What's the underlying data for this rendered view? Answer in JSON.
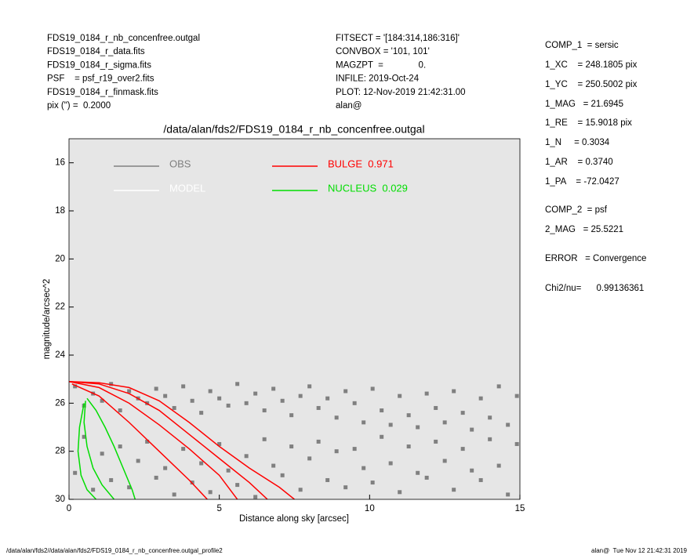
{
  "header": {
    "left": [
      "FDS19_0184_r_nb_concenfree.outgal",
      "FDS19_0184_r_data.fits",
      "FDS19_0184_r_sigma.fits",
      "PSF    = psf_r19_over2.fits",
      "FDS19_0184_r_finmask.fits",
      "pix (\") =  0.2000"
    ],
    "middle": [
      "FITSECT = '[184:314,186:316]'",
      "CONVBOX = '101, 101'",
      "MAGZPT  =              0.",
      "INFILE: 2019-Oct-24",
      "PLOT: 12-Nov-2019 21:42:31.00",
      "alan@"
    ],
    "right": [
      "COMP_1  = sersic",
      "1_XC    = 248.1805 pix",
      "1_YC    = 250.5002 pix",
      "1_MAG   = 21.6945",
      "1_RE    = 15.9018 pix",
      "1_N     = 0.3034",
      "1_AR    = 0.3740",
      "1_PA    = -72.0427",
      "COMP_2  = psf",
      "2_MAG   = 25.5221",
      "ERROR   = Convergence",
      "Chi2/nu=      0.99136361"
    ]
  },
  "footer": {
    "left": "/data/alan/fds2//data/alan/fds2/FDS19_0184_r_nb_concenfree.outgal_profile2",
    "right": "alan@  Tue Nov 12 21:42:31 2019"
  },
  "chart_data": {
    "type": "profile",
    "title": "/data/alan/fds2/FDS19_0184_r_nb_concenfree.outgal",
    "x_label": "Distance along sky [arcsec]",
    "y_label": "magnitude/arcsec^2",
    "xlim": [
      0,
      15
    ],
    "ylim": [
      30,
      15
    ],
    "xticks": [
      0,
      5,
      10,
      15
    ],
    "yticks": [
      16,
      18,
      20,
      22,
      24,
      26,
      28,
      30
    ],
    "background": "#e6e6e6",
    "series": [
      {
        "name": "OBS",
        "color": "#808080",
        "x": [
          0.2,
          0.5,
          0.8,
          1.1,
          1.4,
          1.7,
          2.0,
          2.3,
          2.6,
          2.9,
          3.2,
          3.5,
          3.8,
          4.1,
          4.4,
          4.7,
          5.0,
          5.3,
          5.6,
          5.9,
          6.2,
          6.5,
          6.8,
          7.1,
          7.4,
          7.7,
          8.0,
          8.3,
          8.6,
          8.9,
          9.2,
          9.5,
          9.8,
          10.1,
          10.4,
          10.7,
          11.0,
          11.3,
          11.6,
          11.9,
          12.2,
          12.5,
          12.8,
          13.1,
          13.4,
          13.7,
          14.0,
          14.3,
          14.6,
          14.9,
          0.2,
          0.5,
          0.8,
          1.1,
          1.4,
          1.7,
          2.0,
          2.3,
          2.6,
          2.9,
          3.2,
          3.5,
          3.8,
          4.1,
          4.4,
          4.7,
          5.0,
          5.3,
          5.6,
          5.9,
          6.2,
          6.5,
          6.8,
          7.1,
          7.4,
          7.7,
          8.0,
          8.3,
          8.6,
          8.9,
          9.2,
          9.5,
          9.8,
          10.1,
          10.4,
          10.7,
          11.0,
          11.3,
          11.6,
          11.9,
          12.2,
          12.5,
          12.8,
          13.1,
          13.4,
          13.7,
          14.0,
          14.3,
          14.6,
          14.9
        ],
        "values": [
          25.3,
          26.1,
          25.6,
          25.9,
          25.2,
          26.3,
          25.5,
          25.8,
          26.0,
          25.4,
          25.7,
          26.2,
          25.3,
          25.9,
          26.4,
          25.5,
          25.8,
          26.1,
          25.2,
          26.0,
          25.6,
          26.3,
          25.4,
          25.9,
          26.5,
          25.7,
          25.3,
          26.2,
          25.8,
          26.6,
          25.5,
          26.0,
          26.8,
          25.4,
          26.3,
          26.9,
          25.7,
          26.5,
          27.0,
          25.6,
          26.2,
          26.8,
          25.5,
          26.4,
          27.1,
          25.8,
          26.6,
          25.3,
          26.9,
          25.7,
          28.9,
          27.4,
          29.6,
          28.1,
          29.2,
          27.8,
          29.5,
          28.4,
          27.6,
          29.1,
          28.7,
          29.8,
          27.9,
          29.3,
          28.5,
          29.7,
          27.7,
          28.8,
          29.4,
          28.2,
          29.9,
          27.5,
          28.6,
          29.0,
          27.8,
          29.6,
          28.3,
          27.6,
          29.2,
          28.0,
          29.5,
          27.9,
          28.7,
          29.3,
          27.4,
          28.5,
          29.7,
          27.8,
          28.9,
          29.1,
          27.6,
          28.4,
          29.6,
          27.9,
          28.8,
          29.2,
          27.5,
          28.6,
          29.8,
          27.7
        ]
      },
      {
        "name": "MODEL",
        "color": "#ffffff"
      },
      {
        "name": "BULGE  0.971",
        "color": "#ff0000",
        "curves": [
          {
            "x": [
              0,
              1,
              2,
              3,
              4,
              5,
              6,
              7,
              7.5
            ],
            "values": [
              25.1,
              25.15,
              25.35,
              25.9,
              26.8,
              27.8,
              28.7,
              29.5,
              30
            ]
          },
          {
            "x": [
              0,
              1,
              2,
              3,
              4,
              5,
              6,
              6.6
            ],
            "values": [
              25.1,
              25.2,
              25.6,
              26.3,
              27.3,
              28.3,
              29.3,
              30
            ]
          },
          {
            "x": [
              0,
              1,
              2,
              3,
              4,
              5,
              5.6
            ],
            "values": [
              25.1,
              25.35,
              26.0,
              26.9,
              27.9,
              29.0,
              30
            ]
          },
          {
            "x": [
              0.1,
              1,
              2,
              3,
              4,
              4.6
            ],
            "values": [
              25.2,
              25.7,
              26.8,
              28.0,
              29.2,
              30
            ]
          }
        ]
      },
      {
        "name": "NUCLEUS  0.029",
        "color": "#00dd00",
        "curves": [
          {
            "x": [
              0.6,
              0.9,
              1.2,
              1.5,
              1.8,
              2.1,
              2.2
            ],
            "values": [
              25.8,
              26.3,
              27.0,
              27.8,
              28.7,
              29.6,
              30
            ]
          },
          {
            "x": [
              0.55,
              0.5,
              0.6,
              0.8,
              1.1,
              1.5
            ],
            "values": [
              25.9,
              26.8,
              27.8,
              28.7,
              29.4,
              30
            ]
          },
          {
            "x": [
              0.5,
              0.35,
              0.3,
              0.4,
              0.6,
              0.9
            ],
            "values": [
              26.0,
              27.0,
              28.0,
              29.0,
              29.6,
              30
            ]
          }
        ]
      }
    ]
  }
}
